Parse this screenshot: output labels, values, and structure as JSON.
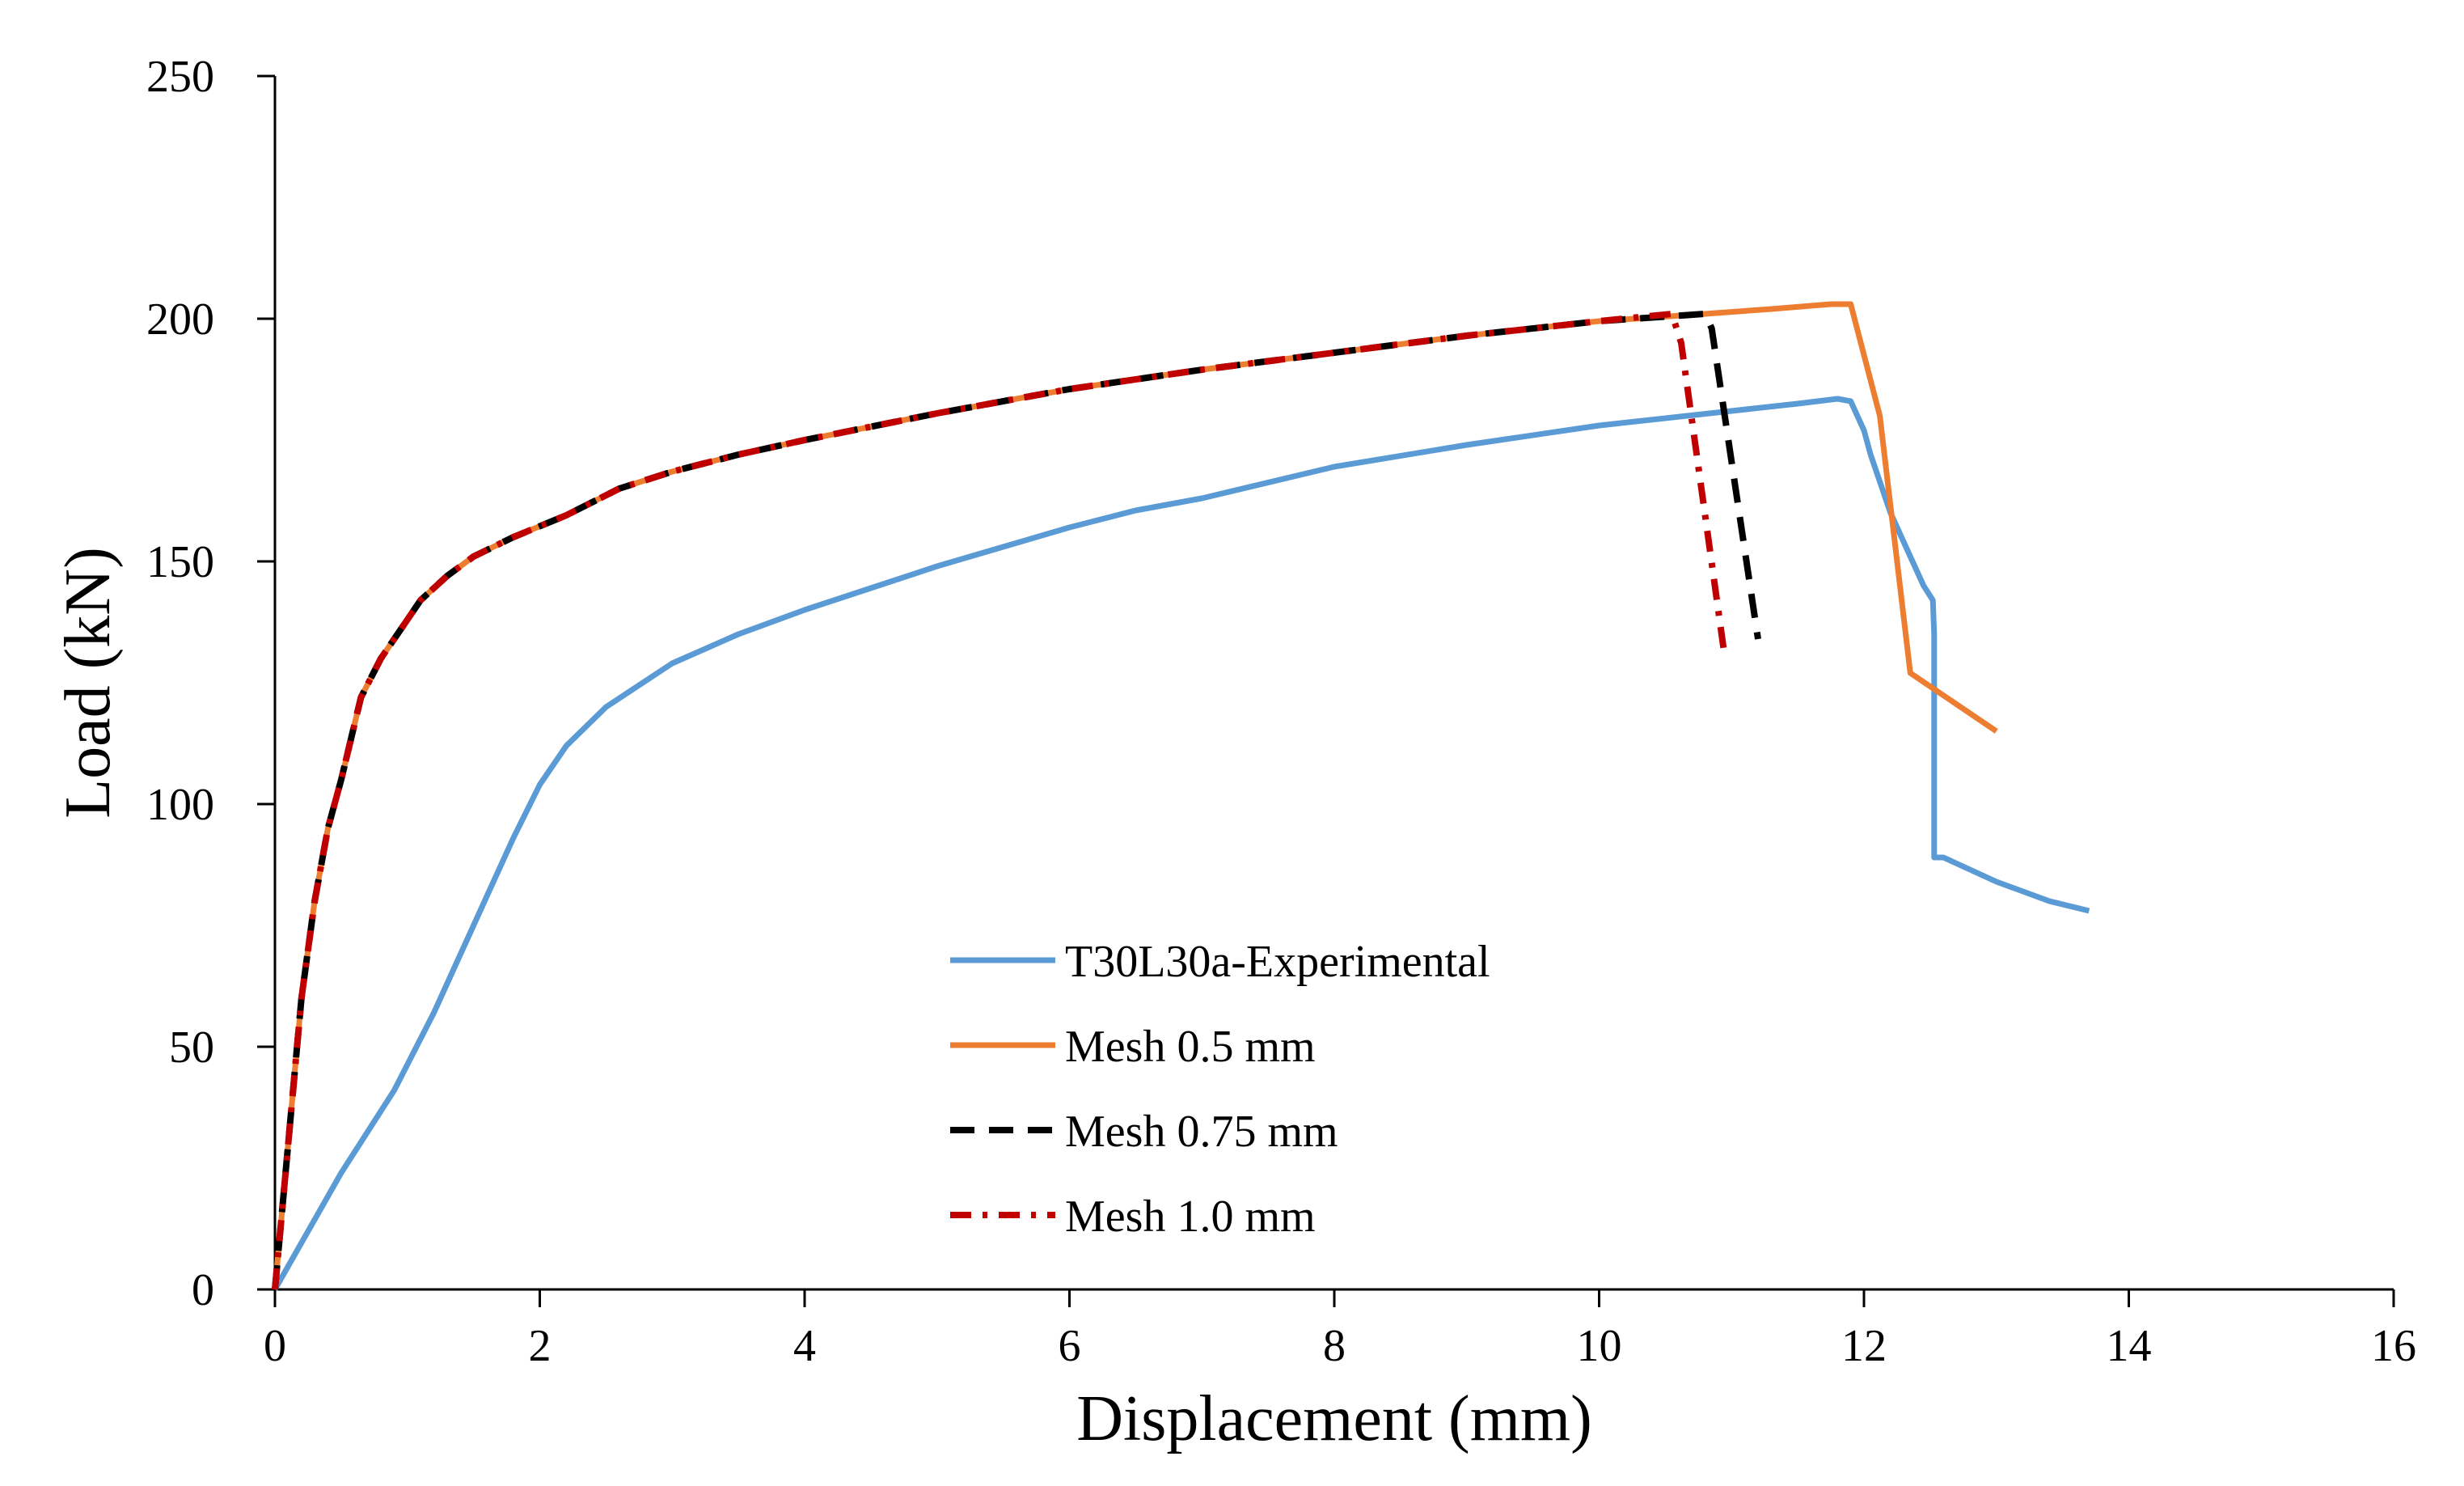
{
  "chart_data": {
    "type": "line",
    "title": "",
    "xlabel": "Displacement (mm)",
    "ylabel": "Load (kN)",
    "xlim": [
      0,
      16
    ],
    "ylim": [
      0,
      250
    ],
    "xticks": [
      "0",
      "2",
      "4",
      "6",
      "8",
      "10",
      "12",
      "14",
      "16"
    ],
    "yticks": [
      "0",
      "50",
      "100",
      "150",
      "200",
      "250"
    ],
    "grid": false,
    "legend_position": "bottom-center",
    "series": [
      {
        "name": "T30L30a-Experimental",
        "color": "#5B9BD5",
        "style": "solid",
        "x": [
          0,
          0.5,
          0.9,
          1.2,
          1.5,
          1.8,
          2.0,
          2.2,
          2.5,
          3.0,
          3.5,
          4.0,
          4.5,
          5.0,
          5.5,
          6.0,
          6.5,
          7.0,
          8.0,
          9.0,
          10.0,
          11.0,
          11.5,
          11.8,
          11.9,
          12.0,
          12.05,
          12.2,
          12.35,
          12.45,
          12.52,
          12.53,
          12.53,
          12.6,
          13.0,
          13.4,
          13.7
        ],
        "y": [
          0,
          24,
          41,
          57,
          75,
          93,
          104,
          112,
          120,
          129,
          135,
          140,
          144.5,
          149,
          153,
          157,
          160.5,
          163,
          169.5,
          174,
          178,
          181,
          182.5,
          183.5,
          183,
          177,
          172,
          160,
          151,
          145,
          142,
          135,
          89,
          89,
          84,
          80,
          78
        ]
      },
      {
        "name": "Mesh 0.5 mm",
        "color": "#ED7D31",
        "style": "solid",
        "x": [
          0,
          0.1,
          0.2,
          0.3,
          0.4,
          0.5,
          0.65,
          0.8,
          0.95,
          1.1,
          1.3,
          1.5,
          1.8,
          2.2,
          2.6,
          3.0,
          3.5,
          4.0,
          5.0,
          6.0,
          7.0,
          8.0,
          9.0,
          10.0,
          10.8,
          11.3,
          11.75,
          11.9,
          12.12,
          12.35,
          13.0
        ],
        "y": [
          0,
          30,
          60,
          80,
          95,
          105,
          122,
          130,
          136,
          142,
          147,
          151,
          155,
          159.5,
          165,
          168.5,
          172,
          175,
          180.5,
          185.5,
          189.5,
          193,
          196.5,
          199.5,
          201,
          202,
          203,
          203,
          180,
          127,
          115
        ]
      },
      {
        "name": "Mesh 0.75 mm",
        "color": "#000000",
        "style": "dashed",
        "x": [
          0,
          0.1,
          0.2,
          0.3,
          0.4,
          0.5,
          0.65,
          0.8,
          0.95,
          1.1,
          1.3,
          1.5,
          1.8,
          2.2,
          2.6,
          3.0,
          3.5,
          4.0,
          5.0,
          6.0,
          7.0,
          8.0,
          9.0,
          10.0,
          10.8,
          10.85,
          11.2
        ],
        "y": [
          0,
          30,
          60,
          80,
          95,
          105,
          122,
          130,
          136,
          142,
          147,
          151,
          155,
          159.5,
          165,
          168.5,
          172,
          175,
          180.5,
          185.5,
          189.5,
          193,
          196.5,
          199.5,
          201,
          198,
          134
        ]
      },
      {
        "name": "Mesh 1.0 mm",
        "color": "#C00000",
        "style": "dashdot",
        "x": [
          0,
          0.1,
          0.2,
          0.3,
          0.4,
          0.5,
          0.65,
          0.8,
          0.95,
          1.1,
          1.3,
          1.5,
          1.8,
          2.2,
          2.6,
          3.0,
          3.5,
          4.0,
          5.0,
          6.0,
          7.0,
          8.0,
          9.0,
          10.0,
          10.55,
          10.62,
          10.95
        ],
        "y": [
          0,
          30,
          60,
          80,
          95,
          105,
          122,
          130,
          136,
          142,
          147,
          151,
          155,
          159.5,
          165,
          168.5,
          172,
          175,
          180.5,
          185.5,
          189.5,
          193,
          196.5,
          199.5,
          201,
          195,
          130
        ]
      }
    ]
  }
}
